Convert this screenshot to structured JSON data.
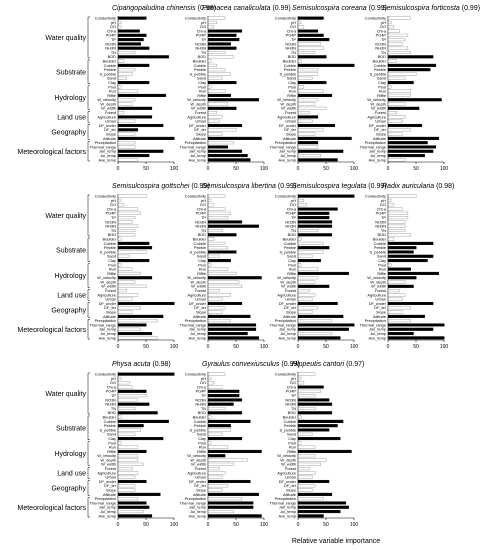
{
  "figure": {
    "footer_label": "Relative variable importance",
    "groups": [
      "Water quality",
      "Substrate",
      "Hydrology",
      "Land use",
      "Geography",
      "Meteorological factors"
    ],
    "variables": [
      "Conductivity",
      "pH",
      "DO",
      "Chl-a",
      "PO4P",
      "TP",
      "NO3N",
      "NH3N",
      "TN",
      "BOD",
      "Boulder",
      "Cobble",
      "Pebble",
      "S_pebble",
      "Sand",
      "Clay",
      "Pool",
      "Run",
      "Riffle",
      "W_velocity",
      "W_depth",
      "W_width",
      "Forest",
      "Agriculture",
      "Urban",
      "DF_under",
      "DF_ter",
      "Slope",
      "Altitude",
      "Precipitation",
      "Thermal_range",
      "Jan_temp",
      "Jul_temp",
      "Ave_temp"
    ],
    "var_group_index": [
      0,
      0,
      0,
      0,
      0,
      0,
      0,
      0,
      0,
      0,
      1,
      1,
      1,
      1,
      1,
      1,
      2,
      2,
      2,
      2,
      2,
      2,
      3,
      3,
      3,
      4,
      4,
      4,
      4,
      5,
      5,
      5,
      5,
      5
    ],
    "xticks": [
      0,
      50,
      100
    ],
    "legend_colors": {
      "selected": "#000000",
      "unselected": "#bdbdbd"
    }
  },
  "chart_data": [
    {
      "type": "bar",
      "title_species": "Cipangopaludina chinensis",
      "title_score": "(0.98)",
      "xlim": [
        0,
        100
      ],
      "values": [
        50,
        5,
        5,
        38,
        50,
        45,
        40,
        55,
        30,
        90,
        10,
        55,
        30,
        25,
        15,
        55,
        5,
        35,
        85,
        30,
        25,
        60,
        10,
        60,
        30,
        80,
        35,
        30,
        100,
        30,
        30,
        80,
        55,
        35
      ],
      "highlight": [
        1,
        0,
        0,
        1,
        1,
        1,
        1,
        1,
        0,
        1,
        0,
        1,
        0,
        0,
        0,
        1,
        0,
        0,
        1,
        0,
        0,
        1,
        0,
        1,
        0,
        1,
        1,
        0,
        1,
        0,
        0,
        1,
        1,
        0
      ]
    },
    {
      "type": "bar",
      "title_species": "Pomacea canaliculata",
      "title_score": "(0.99)",
      "xlim": [
        0,
        100
      ],
      "values": [
        30,
        15,
        10,
        60,
        50,
        55,
        40,
        50,
        30,
        45,
        5,
        15,
        30,
        40,
        25,
        50,
        5,
        30,
        40,
        90,
        35,
        50,
        15,
        25,
        20,
        60,
        50,
        25,
        95,
        45,
        35,
        60,
        70,
        75
      ],
      "highlight": [
        0,
        0,
        0,
        1,
        1,
        1,
        1,
        1,
        0,
        0,
        0,
        0,
        0,
        0,
        0,
        1,
        0,
        0,
        1,
        1,
        0,
        1,
        0,
        0,
        0,
        1,
        0,
        0,
        1,
        0,
        1,
        1,
        1,
        1
      ]
    },
    {
      "type": "bar",
      "title_species": "Semisulcospira coreana",
      "title_score": "(0.99)",
      "xlim": [
        0,
        100
      ],
      "values": [
        45,
        5,
        10,
        35,
        45,
        55,
        40,
        45,
        30,
        50,
        5,
        100,
        35,
        35,
        25,
        50,
        10,
        45,
        60,
        35,
        30,
        50,
        20,
        35,
        25,
        65,
        45,
        30,
        95,
        35,
        35,
        80,
        40,
        70
      ],
      "highlight": [
        1,
        0,
        0,
        1,
        1,
        1,
        0,
        0,
        0,
        1,
        0,
        1,
        0,
        0,
        0,
        1,
        0,
        0,
        1,
        0,
        0,
        0,
        0,
        1,
        0,
        1,
        0,
        0,
        1,
        1,
        0,
        1,
        0,
        1
      ]
    },
    {
      "type": "bar",
      "title_species": "Semisulcospira forticosta",
      "title_score": "(0.99)",
      "xlim": [
        0,
        100
      ],
      "values": [
        40,
        5,
        10,
        20,
        35,
        30,
        25,
        35,
        40,
        80,
        15,
        85,
        75,
        50,
        30,
        45,
        5,
        40,
        40,
        95,
        30,
        55,
        15,
        30,
        25,
        60,
        40,
        25,
        90,
        70,
        85,
        80,
        65,
        30
      ],
      "highlight": [
        0,
        0,
        0,
        0,
        0,
        0,
        0,
        0,
        0,
        1,
        0,
        1,
        1,
        0,
        0,
        1,
        0,
        0,
        0,
        1,
        0,
        1,
        0,
        0,
        0,
        1,
        0,
        0,
        1,
        1,
        1,
        1,
        1,
        0
      ]
    },
    {
      "type": "bar",
      "title_species": "Semisulcospira gottschei",
      "title_score": "(0.99)",
      "xlim": [
        0,
        100
      ],
      "values": [
        50,
        5,
        10,
        35,
        40,
        30,
        25,
        35,
        30,
        30,
        5,
        55,
        60,
        50,
        20,
        55,
        5,
        25,
        40,
        60,
        30,
        50,
        15,
        35,
        25,
        100,
        40,
        25,
        80,
        70,
        50,
        40,
        60,
        70
      ],
      "highlight": [
        0,
        0,
        0,
        0,
        0,
        0,
        0,
        0,
        0,
        0,
        0,
        1,
        1,
        0,
        0,
        1,
        0,
        0,
        0,
        1,
        0,
        0,
        0,
        0,
        0,
        1,
        0,
        0,
        1,
        0,
        1,
        0,
        1,
        0
      ]
    },
    {
      "type": "bar",
      "title_species": "Semisulcospira libertina",
      "title_score": "(0.99)",
      "xlim": [
        0,
        100
      ],
      "values": [
        30,
        5,
        10,
        30,
        40,
        35,
        60,
        90,
        25,
        50,
        10,
        30,
        35,
        50,
        20,
        40,
        5,
        35,
        50,
        95,
        55,
        60,
        20,
        40,
        25,
        60,
        30,
        25,
        75,
        40,
        85,
        85,
        70,
        90
      ],
      "highlight": [
        0,
        0,
        0,
        0,
        0,
        0,
        1,
        1,
        0,
        1,
        0,
        0,
        0,
        1,
        0,
        1,
        0,
        0,
        0,
        1,
        0,
        0,
        0,
        0,
        0,
        1,
        0,
        0,
        1,
        0,
        1,
        1,
        1,
        1
      ]
    },
    {
      "type": "bar",
      "title_species": "Semisulcospira tegulata",
      "title_score": "(0.99)",
      "xlim": [
        0,
        100
      ],
      "values": [
        100,
        10,
        15,
        70,
        55,
        55,
        60,
        60,
        35,
        60,
        5,
        45,
        55,
        45,
        25,
        40,
        5,
        35,
        90,
        35,
        30,
        55,
        20,
        30,
        25,
        70,
        35,
        25,
        80,
        60,
        100,
        90,
        60,
        75
      ],
      "highlight": [
        1,
        0,
        0,
        1,
        1,
        1,
        1,
        1,
        0,
        1,
        0,
        0,
        1,
        0,
        0,
        1,
        0,
        0,
        1,
        0,
        0,
        1,
        0,
        0,
        0,
        1,
        0,
        0,
        1,
        0,
        1,
        1,
        0,
        1
      ]
    },
    {
      "type": "bar",
      "title_species": "Radix auricularia",
      "title_score": "(0.98)",
      "xlim": [
        0,
        100
      ],
      "values": [
        50,
        5,
        10,
        25,
        35,
        35,
        30,
        30,
        30,
        40,
        10,
        80,
        50,
        45,
        80,
        70,
        5,
        40,
        90,
        50,
        30,
        45,
        20,
        30,
        25,
        80,
        40,
        25,
        65,
        40,
        100,
        80,
        45,
        100
      ],
      "highlight": [
        0,
        0,
        0,
        0,
        0,
        0,
        0,
        0,
        0,
        0,
        0,
        1,
        1,
        1,
        1,
        1,
        0,
        1,
        1,
        1,
        0,
        1,
        0,
        0,
        0,
        1,
        0,
        0,
        1,
        0,
        1,
        1,
        1,
        1
      ]
    },
    {
      "type": "bar",
      "title_species": "Physa acuta",
      "title_score": "(0.98)",
      "xlim": [
        0,
        100
      ],
      "values": [
        100,
        5,
        20,
        25,
        50,
        50,
        35,
        55,
        30,
        70,
        5,
        90,
        45,
        40,
        30,
        80,
        5,
        35,
        50,
        35,
        35,
        45,
        25,
        35,
        30,
        50,
        30,
        30,
        75,
        35,
        50,
        55,
        45,
        60
      ],
      "highlight": [
        1,
        0,
        0,
        0,
        1,
        0,
        0,
        1,
        0,
        1,
        0,
        1,
        1,
        0,
        0,
        1,
        0,
        0,
        1,
        0,
        0,
        0,
        0,
        0,
        0,
        1,
        0,
        0,
        1,
        0,
        1,
        1,
        0,
        1
      ]
    },
    {
      "type": "bar",
      "title_species": "Gyraulus convexiusculus",
      "title_score": "(0.99)",
      "xlim": [
        0,
        100
      ],
      "values": [
        30,
        5,
        10,
        25,
        55,
        55,
        60,
        45,
        30,
        60,
        5,
        75,
        40,
        40,
        25,
        60,
        5,
        35,
        95,
        30,
        70,
        45,
        20,
        30,
        25,
        75,
        35,
        25,
        90,
        60,
        80,
        80,
        45,
        95
      ],
      "highlight": [
        0,
        0,
        0,
        0,
        1,
        1,
        1,
        1,
        0,
        1,
        0,
        1,
        1,
        0,
        0,
        1,
        0,
        0,
        1,
        1,
        0,
        0,
        0,
        0,
        0,
        1,
        0,
        0,
        1,
        0,
        1,
        1,
        0,
        1
      ]
    },
    {
      "type": "bar",
      "title_species": "Hippeutis cantori",
      "title_score": "(0.97)",
      "xlim": [
        0,
        100
      ],
      "values": [
        30,
        5,
        10,
        45,
        40,
        30,
        55,
        60,
        30,
        60,
        5,
        80,
        70,
        55,
        25,
        75,
        5,
        30,
        95,
        30,
        50,
        40,
        20,
        30,
        25,
        55,
        30,
        25,
        60,
        45,
        85,
        90,
        75,
        45
      ],
      "highlight": [
        0,
        0,
        0,
        1,
        0,
        0,
        1,
        1,
        0,
        1,
        0,
        1,
        1,
        1,
        0,
        1,
        0,
        0,
        1,
        0,
        0,
        0,
        0,
        0,
        0,
        1,
        0,
        0,
        1,
        0,
        1,
        1,
        1,
        1
      ]
    }
  ]
}
